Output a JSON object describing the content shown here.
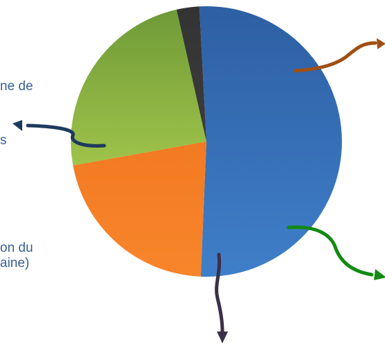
{
  "chart_data": {
    "type": "pie",
    "slices": [
      {
        "value": 51.5,
        "color": "#3f7fc9",
        "color_dark": "#2d5fa3"
      },
      {
        "value": 21.5,
        "color": "#f8852b",
        "color_dark": "#f27a22"
      },
      {
        "value": 24.3,
        "color": "#9fc34a",
        "color_dark": "#6f9a37"
      },
      {
        "value": 2.7,
        "color": "#3c3c3c",
        "color_dark": "#333333"
      }
    ],
    "arrow_colors": [
      "#1e3a5f",
      "#a04f14",
      "#128a12",
      "#3a3048"
    ],
    "label_fragments": [
      {
        "text": "ne de",
        "color": "#3a5f97"
      },
      {
        "text": "s",
        "color": "#3a5f97"
      },
      {
        "text": "on du",
        "color": "#3a5f97"
      },
      {
        "text": "aine)",
        "color": "#3a5f97"
      }
    ]
  }
}
